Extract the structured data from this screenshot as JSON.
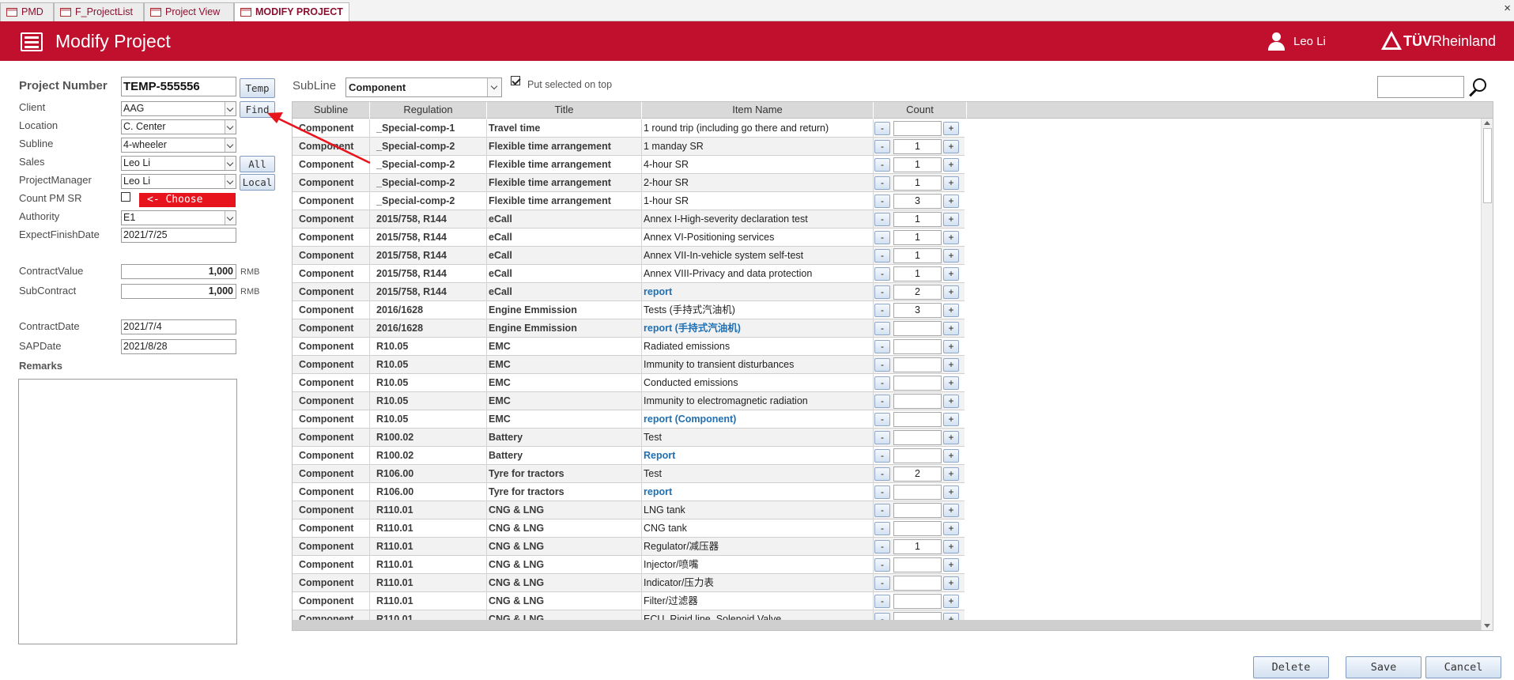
{
  "tabs": [
    {
      "label": "PMD",
      "active": false
    },
    {
      "label": "F_ProjectList",
      "active": false
    },
    {
      "label": "Project View",
      "active": false
    },
    {
      "label": "MODIFY PROJECT",
      "active": true
    }
  ],
  "tab_close": "×",
  "header": {
    "title": "Modify Project",
    "user": "Leo Li",
    "logo_part1": "TÜV",
    "logo_part2": "Rheinland"
  },
  "form": {
    "project_number": {
      "label": "Project Number",
      "value": "TEMP-555556"
    },
    "client": {
      "label": "Client",
      "value": "AAG"
    },
    "location": {
      "label": "Location",
      "value": "C. Center"
    },
    "subline": {
      "label": "Subline",
      "value": "4-wheeler"
    },
    "sales": {
      "label": "Sales",
      "value": "Leo Li"
    },
    "project_manager": {
      "label": "ProjectManager",
      "value": "Leo Li"
    },
    "count_pm_sr": {
      "label": "Count PM SR",
      "checked": false
    },
    "authority": {
      "label": "Authority",
      "value": "E1"
    },
    "expect_finish_date": {
      "label": "ExpectFinishDate",
      "value": "2021/7/25"
    },
    "contract_value": {
      "label": "ContractValue",
      "value": "1,000",
      "unit": "RMB"
    },
    "sub_contract": {
      "label": "SubContract",
      "value": "1,000",
      "unit": "RMB"
    },
    "contract_date": {
      "label": "ContractDate",
      "value": "2021/7/4"
    },
    "sap_date": {
      "label": "SAPDate",
      "value": "2021/8/28"
    },
    "remarks": {
      "label": "Remarks",
      "value": ""
    }
  },
  "side_buttons": {
    "temp": "Temp",
    "find": "Find",
    "all": "All",
    "local": "Local"
  },
  "annotation": {
    "choose": "<- Choose",
    "arrow_color": "#e8141d"
  },
  "filter": {
    "subline_label": "SubLine",
    "subline_value": "Component",
    "put_on_top_label": "Put selected on top",
    "put_on_top_checked": true,
    "search_value": ""
  },
  "grid": {
    "columns": [
      "Subline",
      "Regulation",
      "Title",
      "Item Name",
      "Count"
    ],
    "rows": [
      {
        "subline": "Component",
        "regulation": "_Special-comp-1",
        "title": "Travel time",
        "item": "1 round trip (including go there and return)",
        "count": "",
        "link": false
      },
      {
        "subline": "Component",
        "regulation": "_Special-comp-2",
        "title": "Flexible time arrangement",
        "item": "1 manday SR",
        "count": "1",
        "link": false
      },
      {
        "subline": "Component",
        "regulation": "_Special-comp-2",
        "title": "Flexible time arrangement",
        "item": "4-hour SR",
        "count": "1",
        "link": false
      },
      {
        "subline": "Component",
        "regulation": "_Special-comp-2",
        "title": "Flexible time arrangement",
        "item": "2-hour SR",
        "count": "1",
        "link": false
      },
      {
        "subline": "Component",
        "regulation": "_Special-comp-2",
        "title": "Flexible time arrangement",
        "item": "1-hour SR",
        "count": "3",
        "link": false
      },
      {
        "subline": "Component",
        "regulation": "2015/758, R144",
        "title": "eCall",
        "item": "Annex I-High-severity declaration test",
        "count": "1",
        "link": false
      },
      {
        "subline": "Component",
        "regulation": "2015/758, R144",
        "title": "eCall",
        "item": "Annex VI-Positioning services",
        "count": "1",
        "link": false
      },
      {
        "subline": "Component",
        "regulation": "2015/758, R144",
        "title": "eCall",
        "item": "Annex VII-In-vehicle system self-test",
        "count": "1",
        "link": false
      },
      {
        "subline": "Component",
        "regulation": "2015/758, R144",
        "title": "eCall",
        "item": "Annex VIII-Privacy and data protection",
        "count": "1",
        "link": false
      },
      {
        "subline": "Component",
        "regulation": "2015/758, R144",
        "title": "eCall",
        "item": "report",
        "count": "2",
        "link": true
      },
      {
        "subline": "Component",
        "regulation": "2016/1628",
        "title": "Engine Emmission",
        "item": "Tests (手持式汽油机)",
        "count": "3",
        "link": false
      },
      {
        "subline": "Component",
        "regulation": "2016/1628",
        "title": "Engine Emmission",
        "item": "report (手持式汽油机)",
        "count": "",
        "link": true
      },
      {
        "subline": "Component",
        "regulation": "R10.05",
        "title": "EMC",
        "item": "Radiated emissions",
        "count": "",
        "link": false
      },
      {
        "subline": "Component",
        "regulation": "R10.05",
        "title": "EMC",
        "item": "Immunity to transient disturbances",
        "count": "",
        "link": false
      },
      {
        "subline": "Component",
        "regulation": "R10.05",
        "title": "EMC",
        "item": "Conducted emissions",
        "count": "",
        "link": false
      },
      {
        "subline": "Component",
        "regulation": "R10.05",
        "title": "EMC",
        "item": "Immunity to electromagnetic radiation",
        "count": "",
        "link": false
      },
      {
        "subline": "Component",
        "regulation": "R10.05",
        "title": "EMC",
        "item": "report (Component)",
        "count": "",
        "link": true
      },
      {
        "subline": "Component",
        "regulation": "R100.02",
        "title": "Battery",
        "item": "Test",
        "count": "",
        "link": false
      },
      {
        "subline": "Component",
        "regulation": "R100.02",
        "title": "Battery",
        "item": "Report",
        "count": "",
        "link": true
      },
      {
        "subline": "Component",
        "regulation": "R106.00",
        "title": "Tyre for tractors",
        "item": "Test",
        "count": "2",
        "link": false
      },
      {
        "subline": "Component",
        "regulation": "R106.00",
        "title": "Tyre for tractors",
        "item": "report",
        "count": "",
        "link": true
      },
      {
        "subline": "Component",
        "regulation": "R110.01",
        "title": "CNG & LNG",
        "item": "LNG tank",
        "count": "",
        "link": false
      },
      {
        "subline": "Component",
        "regulation": "R110.01",
        "title": "CNG & LNG",
        "item": "CNG tank",
        "count": "",
        "link": false
      },
      {
        "subline": "Component",
        "regulation": "R110.01",
        "title": "CNG & LNG",
        "item": "Regulator/减压器",
        "count": "1",
        "link": false
      },
      {
        "subline": "Component",
        "regulation": "R110.01",
        "title": "CNG & LNG",
        "item": "Injector/喷嘴",
        "count": "",
        "link": false
      },
      {
        "subline": "Component",
        "regulation": "R110.01",
        "title": "CNG & LNG",
        "item": "Indicator/压力表",
        "count": "",
        "link": false
      },
      {
        "subline": "Component",
        "regulation": "R110.01",
        "title": "CNG & LNG",
        "item": "Filter/过滤器",
        "count": "",
        "link": false
      },
      {
        "subline": "Component",
        "regulation": "R110.01",
        "title": "CNG & LNG",
        "item": "ECU, Rigid line, Solenoid Valve",
        "count": "",
        "link": false
      }
    ],
    "minus_label": "-",
    "plus_label": "+"
  },
  "footer_buttons": {
    "delete": "Delete",
    "save": "Save",
    "cancel": "Cancel"
  },
  "colors": {
    "header": "#c0102e",
    "link": "#1f6fb2",
    "annotation": "#e8141d"
  }
}
